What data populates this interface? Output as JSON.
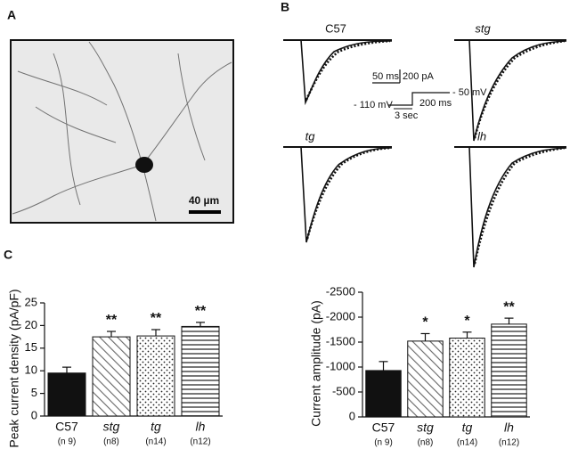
{
  "panel_labels": [
    "A",
    "B",
    "C"
  ],
  "micrograph": {
    "scale_bar": "40 µm"
  },
  "traces": {
    "labels": [
      "C57",
      "stg",
      "tg",
      "lh"
    ],
    "scale": {
      "time": "50 ms",
      "current": "200 pA"
    },
    "protocol": {
      "hold": "- 110 mV",
      "step": "- 50 mV",
      "step_duration": "200 ms",
      "hold_duration": "3 sec"
    }
  },
  "chart_data": [
    {
      "type": "bar",
      "y_label": "Peak current density (pA/pF)",
      "categories": [
        "C57",
        "stg",
        "tg",
        "lh"
      ],
      "category_style": [
        "normal",
        "italic",
        "italic",
        "italic"
      ],
      "sample_sizes": [
        "(n 9)",
        "(n8)",
        "(n14)",
        "(n12)"
      ],
      "values": [
        9.5,
        17.5,
        17.7,
        19.8
      ],
      "errors": [
        1.3,
        1.2,
        1.4,
        0.9
      ],
      "significance": [
        null,
        "**",
        "**",
        "**"
      ],
      "patterns": [
        "solid",
        "hatch",
        "dots",
        "stripes"
      ],
      "color": "#111111",
      "ylim": [
        0,
        25
      ],
      "yticks": [
        0,
        5,
        10,
        15,
        20,
        25
      ]
    },
    {
      "type": "bar",
      "y_label": "Current amplitude (pA)",
      "categories": [
        "C57",
        "stg",
        "tg",
        "lh"
      ],
      "category_style": [
        "normal",
        "italic",
        "italic",
        "italic"
      ],
      "sample_sizes": [
        "(n 9)",
        "(n8)",
        "(n14)",
        "(n12)"
      ],
      "values": [
        -930,
        -1520,
        -1580,
        -1860
      ],
      "errors": [
        180,
        150,
        120,
        120
      ],
      "significance": [
        null,
        "*",
        "*",
        "**"
      ],
      "patterns": [
        "solid",
        "hatch",
        "dots",
        "stripes"
      ],
      "color": "#111111",
      "ylim": [
        0,
        -2500
      ],
      "yticks": [
        0,
        -500,
        -1000,
        -1500,
        -2000,
        -2500
      ]
    }
  ]
}
